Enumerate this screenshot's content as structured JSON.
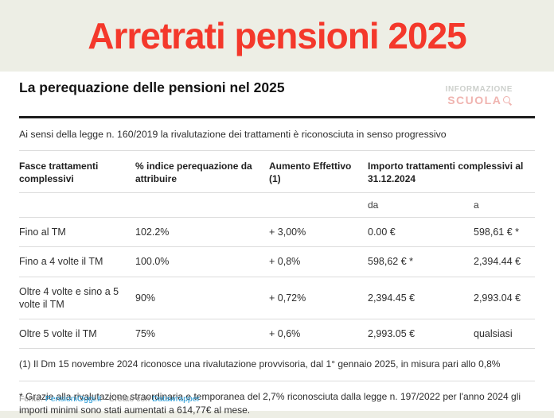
{
  "banner": {
    "title": "Arretrati pensioni 2025"
  },
  "card": {
    "watermark": {
      "line1": "INFORMAZIONE",
      "line2": "SCUOLA"
    }
  },
  "chart_data": {
    "type": "table",
    "title": "La perequazione delle pensioni nel 2025",
    "intro": "Ai sensi della legge n. 160/2019 la rivalutazione dei trattamenti è riconosciuta in senso progressivo",
    "columns": {
      "fasce": "Fasce trattamenti complessivi",
      "indice": "% indice perequazione da attribuire",
      "aumento": "Aumento Effettivo (1)",
      "importo": "Importo trattamenti complessivi al 31.12.2024",
      "sub_da": "da",
      "sub_a": "a"
    },
    "rows": [
      {
        "fascia": "Fino al TM",
        "indice": "102.2%",
        "aumento": "+ 3,00%",
        "da": "0.00 €",
        "a": "598,61 € *"
      },
      {
        "fascia": "Fino a 4 volte il TM",
        "indice": "100.0%",
        "aumento": "+ 0,8%",
        "da": "598,62 € *",
        "a": "2,394.44 €"
      },
      {
        "fascia": "Oltre 4 volte e sino a 5 volte il TM",
        "indice": "90%",
        "aumento": "+ 0,72%",
        "da": "2,394.45 €",
        "a": "2,993.04 €"
      },
      {
        "fascia": "Oltre 5 volte il TM",
        "indice": "75%",
        "aumento": "+ 0,6%",
        "da": "2,993.05 €",
        "a": "qualsiasi"
      }
    ],
    "notes": [
      "(1) Il Dm 15 novembre 2024 riconosce una rivalutazione provvisoria, dal 1° gennaio 2025, in misura pari allo 0,8%",
      "* Grazie alla rivalutazione straordinaria e temporanea del 2,7% riconosciuta dalla legge n. 197/2022 per l'anno 2024 gli importi minimi sono stati aumentati a 614,77€ al mese."
    ]
  },
  "footer": {
    "source_label": "Fonte:",
    "source_link": "PensioniOggi.it",
    "separator": "·",
    "created_label": "Creato con",
    "tool_link": "Datawrapper"
  },
  "colors": {
    "background": "#edeee5",
    "title_red": "#f4382b",
    "card": "#ffffff",
    "separator_line": "#dcdcdc",
    "heading_rule": "#1d1d1d",
    "link_blue": "#2196d3",
    "watermark_gray": "#cdd0cc",
    "watermark_red": "#f0b4b0"
  }
}
